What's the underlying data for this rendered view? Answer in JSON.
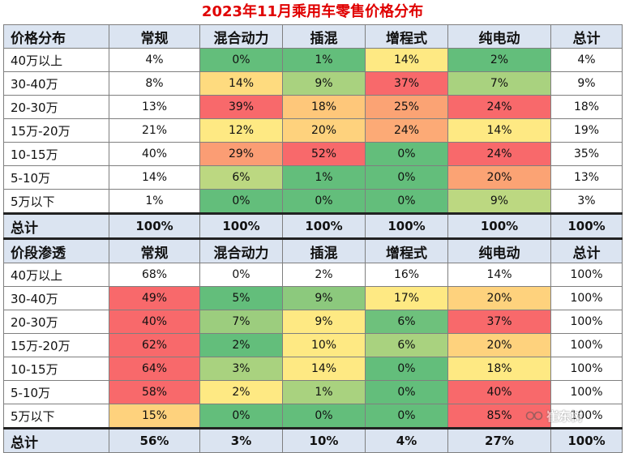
{
  "title": "2023年11月乘用车零售价格分布",
  "chart_data": {
    "type": "table",
    "tables": [
      {
        "header": [
          "价格分布",
          "常规",
          "混合动力",
          "插混",
          "增程式",
          "纯电动",
          "总计"
        ],
        "rows": [
          {
            "label": "40万以上",
            "values": [
              "4%",
              "0%",
              "1%",
              "14%",
              "2%",
              "4%"
            ],
            "colors": [
              "#ffffff",
              "#63be7b",
              "#63be7b",
              "#fee983",
              "#63be7b",
              "#ffffff"
            ]
          },
          {
            "label": "30-40万",
            "values": [
              "8%",
              "14%",
              "9%",
              "37%",
              "7%",
              "9%"
            ],
            "colors": [
              "#ffffff",
              "#fedb7f",
              "#a9d27f",
              "#f8696b",
              "#a9d27f",
              "#ffffff"
            ]
          },
          {
            "label": "20-30万",
            "values": [
              "13%",
              "39%",
              "18%",
              "25%",
              "24%",
              "18%"
            ],
            "colors": [
              "#ffffff",
              "#f8696b",
              "#fec77a",
              "#fba374",
              "#f8696b",
              "#ffffff"
            ]
          },
          {
            "label": "15万-20万",
            "values": [
              "21%",
              "12%",
              "20%",
              "24%",
              "14%",
              "19%"
            ],
            "colors": [
              "#ffffff",
              "#fee983",
              "#fed27d",
              "#fcaa76",
              "#fee983",
              "#ffffff"
            ]
          },
          {
            "label": "10-15万",
            "values": [
              "40%",
              "29%",
              "52%",
              "0%",
              "24%",
              "35%"
            ],
            "colors": [
              "#ffffff",
              "#fb9d74",
              "#f8696b",
              "#63be7b",
              "#f8696b",
              "#ffffff"
            ]
          },
          {
            "label": "5-10万",
            "values": [
              "14%",
              "6%",
              "1%",
              "0%",
              "20%",
              "13%"
            ],
            "colors": [
              "#ffffff",
              "#bcd881",
              "#63be7b",
              "#63be7b",
              "#fba374",
              "#ffffff"
            ]
          },
          {
            "label": "5万以下",
            "values": [
              "1%",
              "0%",
              "0%",
              "0%",
              "9%",
              "3%"
            ],
            "colors": [
              "#ffffff",
              "#63be7b",
              "#63be7b",
              "#63be7b",
              "#bcd881",
              "#ffffff"
            ]
          }
        ],
        "total": {
          "label": "总计",
          "values": [
            "100%",
            "100%",
            "100%",
            "100%",
            "100%",
            "100%"
          ]
        }
      },
      {
        "header": [
          "价段渗透",
          "常规",
          "混合动力",
          "插混",
          "增程式",
          "纯电动",
          "总计"
        ],
        "rows": [
          {
            "label": "40万以上",
            "values": [
              "68%",
              "0%",
              "2%",
              "16%",
              "14%",
              "100%"
            ],
            "colors": [
              "#ffffff",
              "#ffffff",
              "#ffffff",
              "#ffffff",
              "#ffffff",
              "#ffffff"
            ]
          },
          {
            "label": "30-40万",
            "values": [
              "49%",
              "5%",
              "9%",
              "17%",
              "20%",
              "100%"
            ],
            "colors": [
              "#f8696b",
              "#63be7b",
              "#8cc97d",
              "#fee983",
              "#fed27d",
              "#ffffff"
            ]
          },
          {
            "label": "20-30万",
            "values": [
              "40%",
              "7%",
              "9%",
              "6%",
              "37%",
              "100%"
            ],
            "colors": [
              "#f8696b",
              "#9ccd7e",
              "#fee983",
              "#6ec17c",
              "#f8696b",
              "#ffffff"
            ]
          },
          {
            "label": "15万-20万",
            "values": [
              "62%",
              "2%",
              "10%",
              "6%",
              "20%",
              "100%"
            ],
            "colors": [
              "#f8696b",
              "#63be7b",
              "#fee983",
              "#a9d27f",
              "#fed27d",
              "#ffffff"
            ]
          },
          {
            "label": "10-15万",
            "values": [
              "64%",
              "3%",
              "14%",
              "0%",
              "18%",
              "100%"
            ],
            "colors": [
              "#f8696b",
              "#a9d27f",
              "#fee983",
              "#63be7b",
              "#fee983",
              "#ffffff"
            ]
          },
          {
            "label": "5-10万",
            "values": [
              "58%",
              "2%",
              "1%",
              "0%",
              "40%",
              "100%"
            ],
            "colors": [
              "#f8696b",
              "#fee983",
              "#a9d27f",
              "#63be7b",
              "#f8696b",
              "#ffffff"
            ]
          },
          {
            "label": "5万以下",
            "values": [
              "15%",
              "0%",
              "0%",
              "0%",
              "85%",
              "100%"
            ],
            "colors": [
              "#fed27d",
              "#63be7b",
              "#63be7b",
              "#63be7b",
              "#f8696b",
              "#ffffff"
            ]
          }
        ],
        "total": {
          "label": "总计",
          "values": [
            "56%",
            "3%",
            "10%",
            "4%",
            "27%",
            "100%"
          ]
        }
      }
    ]
  },
  "watermark": {
    "text": "崔东树",
    "icon": "wechat-channel-icon"
  }
}
